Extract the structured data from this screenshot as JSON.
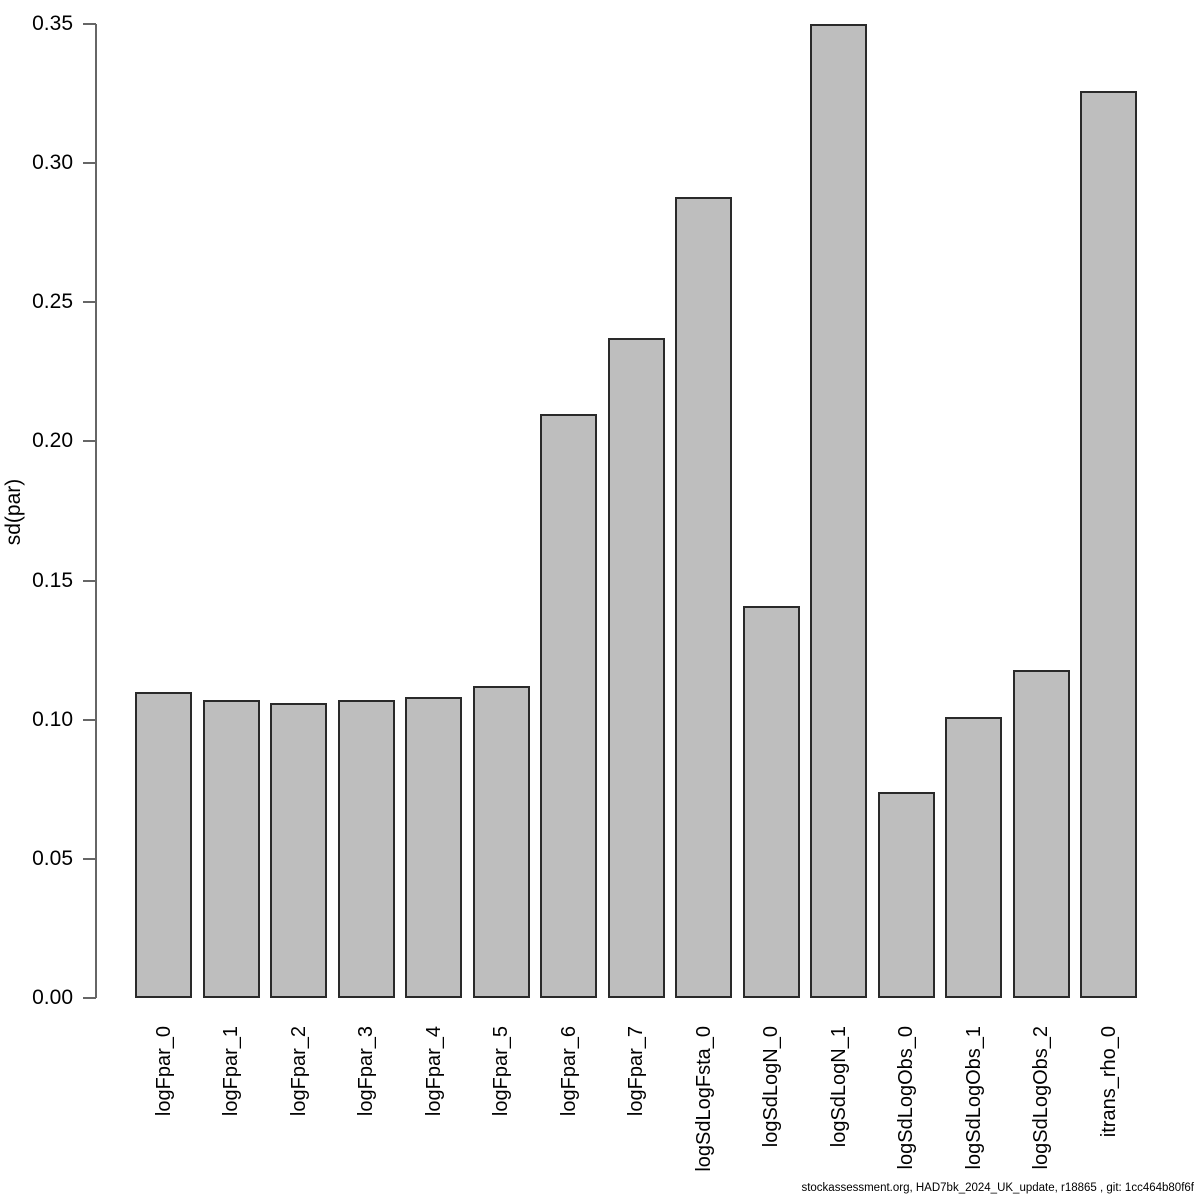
{
  "chart_data": {
    "type": "bar",
    "title": "",
    "xlabel": "",
    "ylabel": "sd(par)",
    "ylim": [
      0,
      0.35
    ],
    "ytick_labels": [
      "0.00",
      "0.05",
      "0.10",
      "0.15",
      "0.20",
      "0.25",
      "0.30",
      "0.35"
    ],
    "grid": "off",
    "legend": "none",
    "categories": [
      "logFpar_0",
      "logFpar_1",
      "logFpar_2",
      "logFpar_3",
      "logFpar_4",
      "logFpar_5",
      "logFpar_6",
      "logFpar_7",
      "logSdLogFsta_0",
      "logSdLogN_0",
      "logSdLogN_1",
      "logSdLogObs_0",
      "logSdLogObs_1",
      "logSdLogObs_2",
      "itrans_rho_0"
    ],
    "values": [
      0.11,
      0.107,
      0.106,
      0.107,
      0.108,
      0.112,
      0.21,
      0.237,
      0.288,
      0.141,
      0.35,
      0.074,
      0.101,
      0.118,
      0.326
    ],
    "bar_fill_color": "#BEBEBE",
    "bar_border_color": "#2a2a2a",
    "axis_color": "#666666",
    "text_color": "#000000",
    "footer": "stockassessment.org, HAD7bk_2024_UK_update, r18865 , git: 1cc464b80f6f"
  }
}
